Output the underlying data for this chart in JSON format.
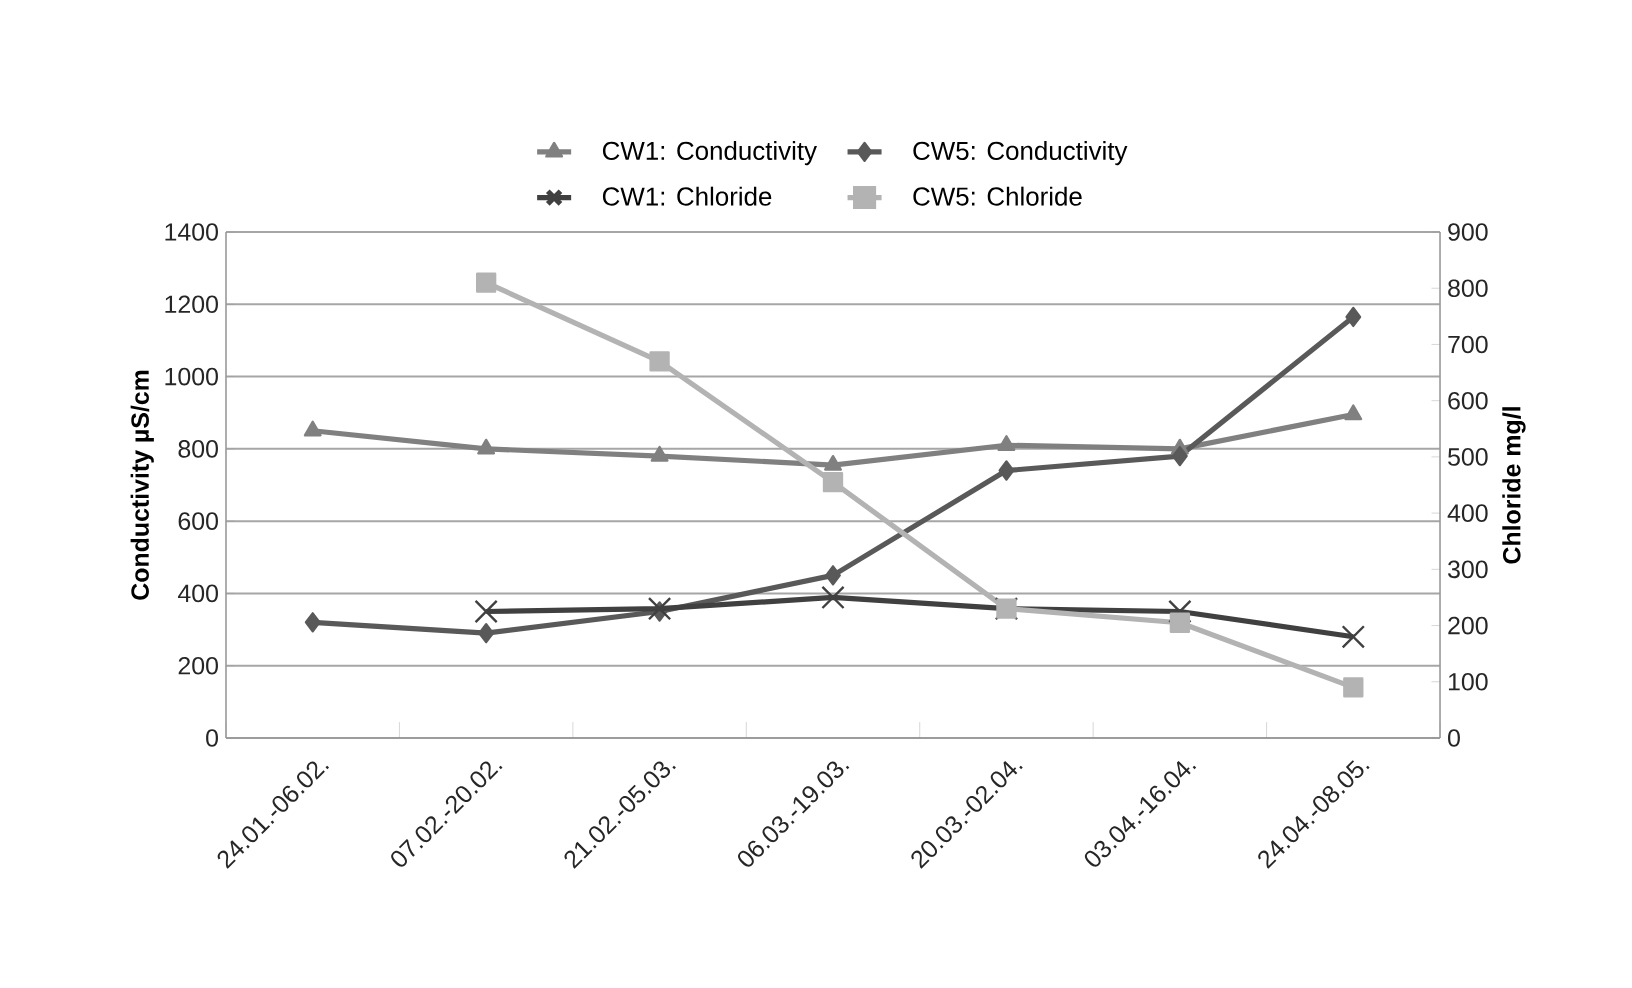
{
  "chart_data": {
    "type": "line",
    "ylabel": "Conductivity µS/cm",
    "y2label": "Chloride mg/l",
    "categories": [
      "24.01.-06.02.",
      "07.02.-20.02.",
      "21.02.-05.03.",
      "06.03.-19.03.",
      "20.03.-02.04.",
      "03.04.-16.04.",
      "24.04.-08.05."
    ],
    "series": [
      {
        "name": "CW1: Conductivity",
        "color": "#808080",
        "marker": "triangle",
        "values": [
          850,
          800,
          780,
          755,
          810,
          800,
          895
        ]
      },
      {
        "name": "CW5: Conductivity",
        "color": "#595959",
        "marker": "diamond",
        "values": [
          320,
          290,
          350,
          450,
          740,
          780,
          1165
        ]
      },
      {
        "name": "CW1: Chloride",
        "color": "#404040",
        "marker": "cross",
        "axis": "y2",
        "values": [
          null,
          225,
          230,
          250,
          230,
          225,
          180
        ]
      },
      {
        "name": "CW5: Chloride",
        "color": "#b3b3b3",
        "marker": "square",
        "axis": "y2",
        "values": [
          null,
          810,
          670,
          455,
          230,
          205,
          90
        ]
      }
    ],
    "ylim": [
      0,
      1400
    ],
    "yticks": [
      0,
      200,
      400,
      600,
      800,
      1000,
      1200,
      1400
    ],
    "y2lim": [
      0,
      900
    ],
    "y2ticks": [
      0,
      100,
      200,
      300,
      400,
      500,
      600,
      700,
      800,
      900
    ],
    "grid": "y",
    "legend": "top",
    "line_style": "solid"
  }
}
